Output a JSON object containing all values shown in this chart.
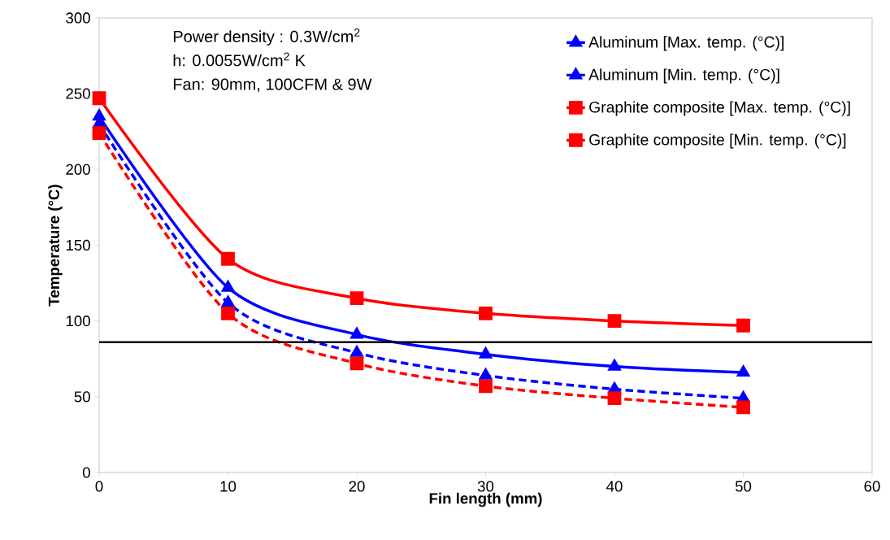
{
  "chart_data": {
    "type": "line",
    "xlabel": "Fin length (mm)",
    "ylabel": "Temperature (°C)",
    "x": [
      0,
      10,
      20,
      30,
      40,
      50
    ],
    "series": [
      {
        "name": "Aluminum [Max. temp. (°C)]",
        "color": "#0000ff",
        "marker": "triangle",
        "line_style": "solid",
        "values": [
          235,
          122,
          91,
          78,
          70,
          66
        ]
      },
      {
        "name": "Aluminum [Min. temp. (°C)]",
        "color": "#0000ff",
        "marker": "triangle",
        "line_style": "dashed",
        "values": [
          230,
          112,
          79,
          64,
          55,
          49
        ]
      },
      {
        "name": "Graphite composite [Max. temp. (°C)]",
        "color": "#ff0000",
        "marker": "square",
        "line_style": "solid",
        "values": [
          247,
          141,
          115,
          105,
          100,
          97
        ]
      },
      {
        "name": "Graphite composite [Min. temp. (°C)]",
        "color": "#ff0000",
        "marker": "square",
        "line_style": "dashed",
        "values": [
          224,
          105,
          72,
          57,
          49,
          43
        ]
      }
    ],
    "xlim": [
      0,
      60
    ],
    "xticks": [
      0,
      10,
      20,
      30,
      40,
      50,
      60
    ],
    "ylim": [
      0,
      300
    ],
    "yticks": [
      0,
      50,
      100,
      150,
      200,
      250,
      300
    ],
    "ref_lines": [
      {
        "axis": "y",
        "value": 86,
        "color": "#000000"
      }
    ],
    "annotations": [
      "Power density : 0.3W/cm$^{2}$",
      "h: 0.0055W/cm$^{2}$ K",
      "Fan: 90mm, 100CFM & 9W"
    ],
    "grid": false,
    "legend": "top right"
  }
}
